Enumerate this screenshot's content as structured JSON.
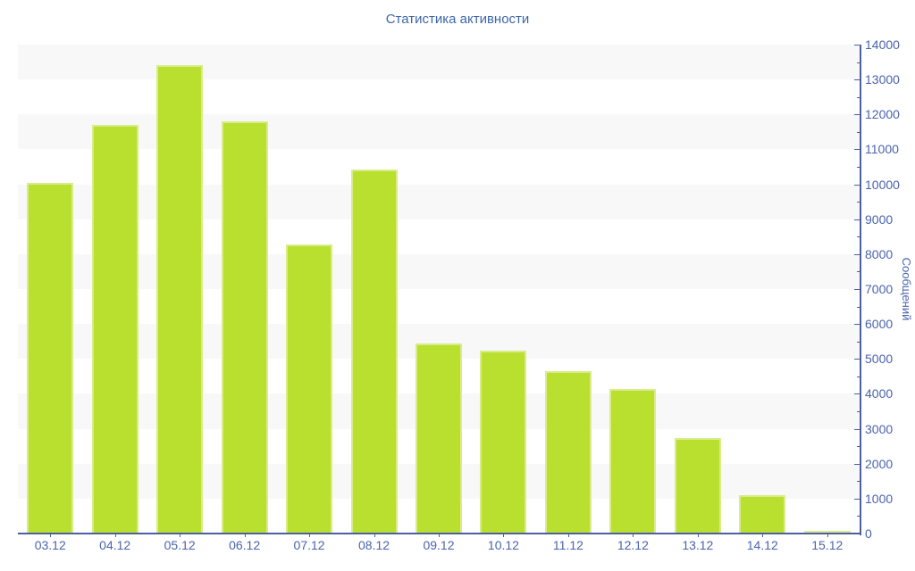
{
  "chart_data": {
    "type": "bar",
    "title": "Статистика активности",
    "xlabel": "",
    "ylabel": "Сообщений",
    "categories": [
      "03.12",
      "04.12",
      "05.12",
      "06.12",
      "07.12",
      "08.12",
      "09.12",
      "10.12",
      "11.12",
      "12.12",
      "13.12",
      "14.12",
      "15.12"
    ],
    "values": [
      10050,
      11700,
      13400,
      11800,
      8280,
      10430,
      5440,
      5240,
      4650,
      4140,
      2740,
      1100,
      80
    ],
    "series_name": "Сообщений",
    "ylim": [
      0,
      14000
    ],
    "y_tick_step": 1000,
    "y_minor_tick_step": 500,
    "y_tick_labels": [
      "0",
      "1000",
      "2000",
      "3000",
      "4000",
      "5000",
      "6000",
      "7000",
      "8000",
      "9000",
      "10000",
      "11000",
      "12000",
      "13000",
      "14000"
    ],
    "y_axis_side": "right",
    "legend": "none",
    "grid": "alternating-horizontal-bands",
    "style": {
      "bar_color": "#b9df2f",
      "bar_edge_color": "#d9ec8a",
      "band_color": "#f8f8f8",
      "band_alt_color": "#ffffff",
      "axis_color": "#4d5fa3",
      "tick_label_color": "#4a63ad",
      "title_color": "#3d67a5"
    }
  }
}
